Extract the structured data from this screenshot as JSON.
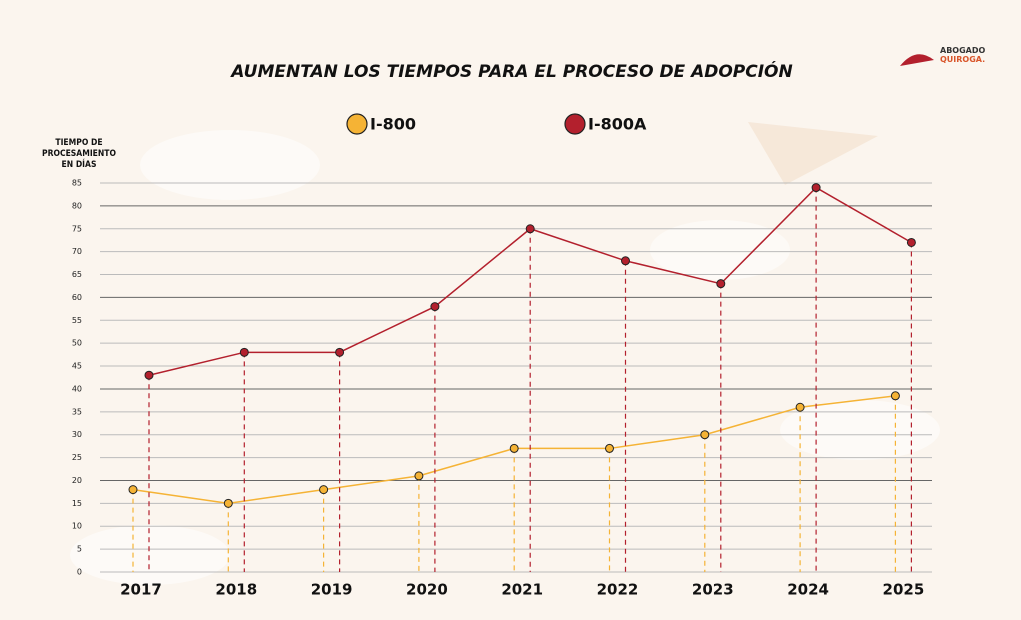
{
  "chart_data": {
    "type": "line",
    "title": "AUMENTAN LOS TIEMPOS PARA EL PROCESO DE ADOPCIÓN",
    "y_label": "TIEMPO DE PROCESAMIENTO EN DÍAS",
    "categories": [
      "2017",
      "2018",
      "2019",
      "2020",
      "2021",
      "2022",
      "2023",
      "2024",
      "2025"
    ],
    "series": [
      {
        "name": "I-800",
        "color": "#f5b335",
        "values": [
          18,
          15,
          18,
          21,
          27,
          27,
          30,
          36,
          38.5
        ]
      },
      {
        "name": "I-800A",
        "color": "#b3202d",
        "values": [
          43,
          48,
          48,
          58,
          75,
          68,
          63,
          84,
          72
        ]
      }
    ],
    "ylim": [
      0,
      85
    ],
    "yticks": [
      0,
      5,
      10,
      15,
      20,
      25,
      30,
      35,
      40,
      45,
      50,
      55,
      60,
      65,
      70,
      75,
      80,
      85
    ],
    "grid": true
  },
  "logo": [
    "ABOGADO",
    "QUIROGA."
  ]
}
